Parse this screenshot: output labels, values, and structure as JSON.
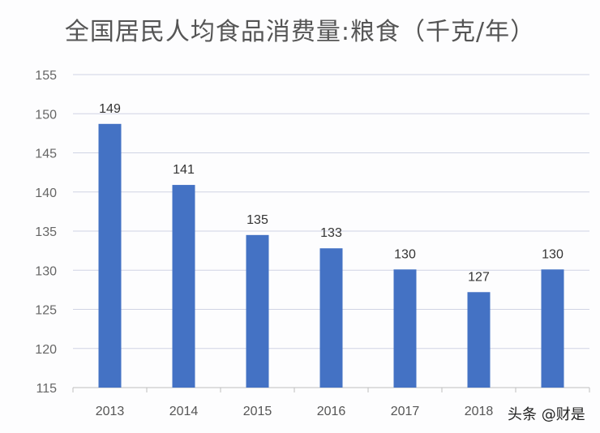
{
  "chart_data": {
    "type": "bar",
    "title": "全国居民人均食品消费量:粮食（千克/年）",
    "xlabel": "",
    "ylabel": "",
    "categories": [
      "2013",
      "2014",
      "2015",
      "2016",
      "2017",
      "2018",
      ""
    ],
    "values": [
      148.7,
      140.9,
      134.5,
      132.8,
      130.1,
      127.2,
      130.1
    ],
    "data_labels": [
      "149",
      "141",
      "135",
      "133",
      "130",
      "127",
      "130"
    ],
    "ylim": [
      115,
      155
    ],
    "yticks": [
      "115",
      "120",
      "125",
      "130",
      "135",
      "140",
      "145",
      "150",
      "155"
    ],
    "grid": true,
    "legend": "none",
    "bar_color": "#4472c4"
  },
  "watermark": "头条 @财是"
}
